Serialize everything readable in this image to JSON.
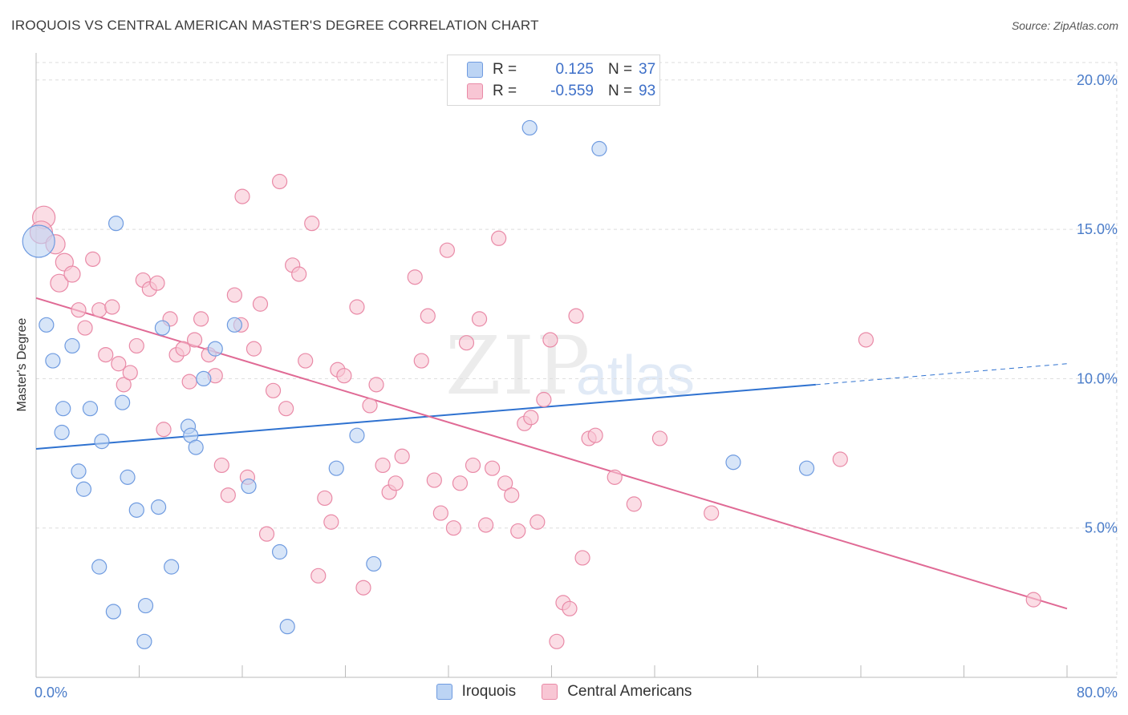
{
  "header": {
    "title": "IROQUOIS VS CENTRAL AMERICAN MASTER'S DEGREE CORRELATION CHART",
    "source": "Source: ZipAtlas.com"
  },
  "watermark": {
    "zip": "ZIP",
    "atlas": "atlas"
  },
  "legend": {
    "rows": [
      {
        "r_label": "R =",
        "r_value": "0.125",
        "n_label": "N =",
        "n_value": "37"
      },
      {
        "r_label": "R =",
        "r_value": "-0.559",
        "n_label": "N =",
        "n_value": "93"
      }
    ]
  },
  "bottom_legend": {
    "series1": "Iroquois",
    "series2": "Central Americans"
  },
  "colors": {
    "blue_fill": "#bcd4f4",
    "blue_stroke": "#6f9be0",
    "blue_line": "#2f72d0",
    "pink_fill": "#f8c6d4",
    "pink_stroke": "#e98aa7",
    "pink_line": "#e06a95",
    "grid": "#dddddd",
    "tick": "#4a7cc9"
  },
  "chart_data": {
    "type": "scatter",
    "title": "IROQUOIS VS CENTRAL AMERICAN MASTER'S DEGREE CORRELATION CHART",
    "xlabel": "",
    "ylabel": "Master's Degree",
    "xlim": [
      0,
      80
    ],
    "ylim": [
      0,
      20.8
    ],
    "x_tick_labels": [
      "0.0%",
      "80.0%"
    ],
    "y_ticks": [
      5,
      10,
      15,
      20
    ],
    "y_tick_labels": [
      "5.0%",
      "10.0%",
      "15.0%",
      "20.0%"
    ],
    "series": [
      {
        "name": "Iroquois",
        "r": 0.125,
        "n": 37,
        "trend": {
          "x0": 0,
          "y0": 7.65,
          "x1": 60.5,
          "y1": 9.8,
          "dash_to_x": 80,
          "dash_to_y": 10.5
        },
        "points": [
          [
            0.2,
            14.6,
            20
          ],
          [
            0.8,
            11.8,
            9
          ],
          [
            1.3,
            10.6,
            9
          ],
          [
            2.0,
            8.2,
            9
          ],
          [
            2.1,
            9.0,
            9
          ],
          [
            2.8,
            11.1,
            9
          ],
          [
            3.3,
            6.9,
            9
          ],
          [
            3.7,
            6.3,
            9
          ],
          [
            4.2,
            9.0,
            9
          ],
          [
            4.9,
            3.7,
            9
          ],
          [
            5.1,
            7.9,
            9
          ],
          [
            6.0,
            2.2,
            9
          ],
          [
            6.2,
            15.2,
            9
          ],
          [
            6.7,
            9.2,
            9
          ],
          [
            7.1,
            6.7,
            9
          ],
          [
            7.8,
            5.6,
            9
          ],
          [
            8.4,
            1.2,
            9
          ],
          [
            8.5,
            2.4,
            9
          ],
          [
            9.5,
            5.7,
            9
          ],
          [
            9.8,
            11.7,
            9
          ],
          [
            10.5,
            3.7,
            9
          ],
          [
            11.8,
            8.4,
            9
          ],
          [
            12.0,
            8.1,
            9
          ],
          [
            12.4,
            7.7,
            9
          ],
          [
            13.0,
            10.0,
            9
          ],
          [
            13.9,
            11.0,
            9
          ],
          [
            15.4,
            11.8,
            9
          ],
          [
            16.5,
            6.4,
            9
          ],
          [
            18.9,
            4.2,
            9
          ],
          [
            19.5,
            1.7,
            9
          ],
          [
            23.3,
            7.0,
            9
          ],
          [
            24.9,
            8.1,
            9
          ],
          [
            26.2,
            3.8,
            9
          ],
          [
            38.3,
            18.4,
            9
          ],
          [
            43.7,
            17.7,
            9
          ],
          [
            54.1,
            7.2,
            9
          ],
          [
            59.8,
            7.0,
            9
          ]
        ]
      },
      {
        "name": "Central Americans",
        "r": -0.559,
        "n": 93,
        "trend": {
          "x0": 0,
          "y0": 12.7,
          "x1": 80,
          "y1": 2.3
        },
        "points": [
          [
            0.6,
            15.4,
            14
          ],
          [
            0.4,
            14.9,
            14
          ],
          [
            1.5,
            14.5,
            12
          ],
          [
            1.8,
            13.2,
            11
          ],
          [
            2.2,
            13.9,
            11
          ],
          [
            2.8,
            13.5,
            10
          ],
          [
            3.3,
            12.3,
            9
          ],
          [
            3.8,
            11.7,
            9
          ],
          [
            4.4,
            14.0,
            9
          ],
          [
            4.9,
            12.3,
            9
          ],
          [
            5.4,
            10.8,
            9
          ],
          [
            5.9,
            12.4,
            9
          ],
          [
            6.4,
            10.5,
            9
          ],
          [
            6.8,
            9.8,
            9
          ],
          [
            7.3,
            10.2,
            9
          ],
          [
            7.8,
            11.1,
            9
          ],
          [
            8.3,
            13.3,
            9
          ],
          [
            8.8,
            13.0,
            9
          ],
          [
            9.4,
            13.2,
            9
          ],
          [
            9.9,
            8.3,
            9
          ],
          [
            10.4,
            12.0,
            9
          ],
          [
            10.9,
            10.8,
            9
          ],
          [
            11.4,
            11.0,
            9
          ],
          [
            11.9,
            9.9,
            9
          ],
          [
            12.3,
            11.3,
            9
          ],
          [
            12.8,
            12.0,
            9
          ],
          [
            13.4,
            10.8,
            9
          ],
          [
            13.9,
            10.1,
            9
          ],
          [
            14.4,
            7.1,
            9
          ],
          [
            14.9,
            6.1,
            9
          ],
          [
            15.4,
            12.8,
            9
          ],
          [
            15.9,
            11.8,
            9
          ],
          [
            16.4,
            6.7,
            9
          ],
          [
            16.9,
            11.0,
            9
          ],
          [
            17.4,
            12.5,
            9
          ],
          [
            17.9,
            4.8,
            9
          ],
          [
            18.4,
            9.6,
            9
          ],
          [
            18.9,
            16.6,
            9
          ],
          [
            19.4,
            9.0,
            9
          ],
          [
            19.9,
            13.8,
            9
          ],
          [
            20.4,
            13.5,
            9
          ],
          [
            20.9,
            10.6,
            9
          ],
          [
            21.4,
            15.2,
            9
          ],
          [
            21.9,
            3.4,
            9
          ],
          [
            22.4,
            6.0,
            9
          ],
          [
            22.9,
            5.2,
            9
          ],
          [
            23.4,
            10.3,
            9
          ],
          [
            23.9,
            10.1,
            9
          ],
          [
            24.9,
            12.4,
            9
          ],
          [
            25.4,
            3.0,
            9
          ],
          [
            25.9,
            9.1,
            9
          ],
          [
            26.4,
            9.8,
            9
          ],
          [
            26.9,
            7.1,
            9
          ],
          [
            27.4,
            6.2,
            9
          ],
          [
            27.9,
            6.5,
            9
          ],
          [
            28.4,
            7.4,
            9
          ],
          [
            29.4,
            13.4,
            9
          ],
          [
            29.9,
            10.6,
            9
          ],
          [
            30.4,
            12.1,
            9
          ],
          [
            30.9,
            6.6,
            9
          ],
          [
            31.4,
            5.5,
            9
          ],
          [
            31.9,
            14.3,
            9
          ],
          [
            32.4,
            5.0,
            9
          ],
          [
            32.9,
            6.5,
            9
          ],
          [
            33.4,
            11.2,
            9
          ],
          [
            33.9,
            7.1,
            9
          ],
          [
            34.4,
            12.0,
            9
          ],
          [
            34.9,
            5.1,
            9
          ],
          [
            35.4,
            7.0,
            9
          ],
          [
            35.9,
            14.7,
            9
          ],
          [
            36.4,
            6.5,
            9
          ],
          [
            36.9,
            6.1,
            9
          ],
          [
            37.4,
            4.9,
            9
          ],
          [
            37.9,
            8.5,
            9
          ],
          [
            38.4,
            8.7,
            9
          ],
          [
            38.9,
            5.2,
            9
          ],
          [
            39.4,
            9.3,
            9
          ],
          [
            39.9,
            11.3,
            9
          ],
          [
            40.4,
            1.2,
            9
          ],
          [
            40.9,
            2.5,
            9
          ],
          [
            41.4,
            2.3,
            9
          ],
          [
            41.9,
            12.1,
            9
          ],
          [
            42.4,
            4.0,
            9
          ],
          [
            42.9,
            8.0,
            9
          ],
          [
            43.4,
            8.1,
            9
          ],
          [
            44.9,
            6.7,
            9
          ],
          [
            46.4,
            5.8,
            9
          ],
          [
            48.4,
            8.0,
            9
          ],
          [
            52.4,
            5.5,
            9
          ],
          [
            62.4,
            7.3,
            9
          ],
          [
            64.4,
            11.3,
            9
          ],
          [
            77.4,
            2.6,
            9
          ],
          [
            16.0,
            16.1,
            9
          ]
        ]
      }
    ]
  }
}
